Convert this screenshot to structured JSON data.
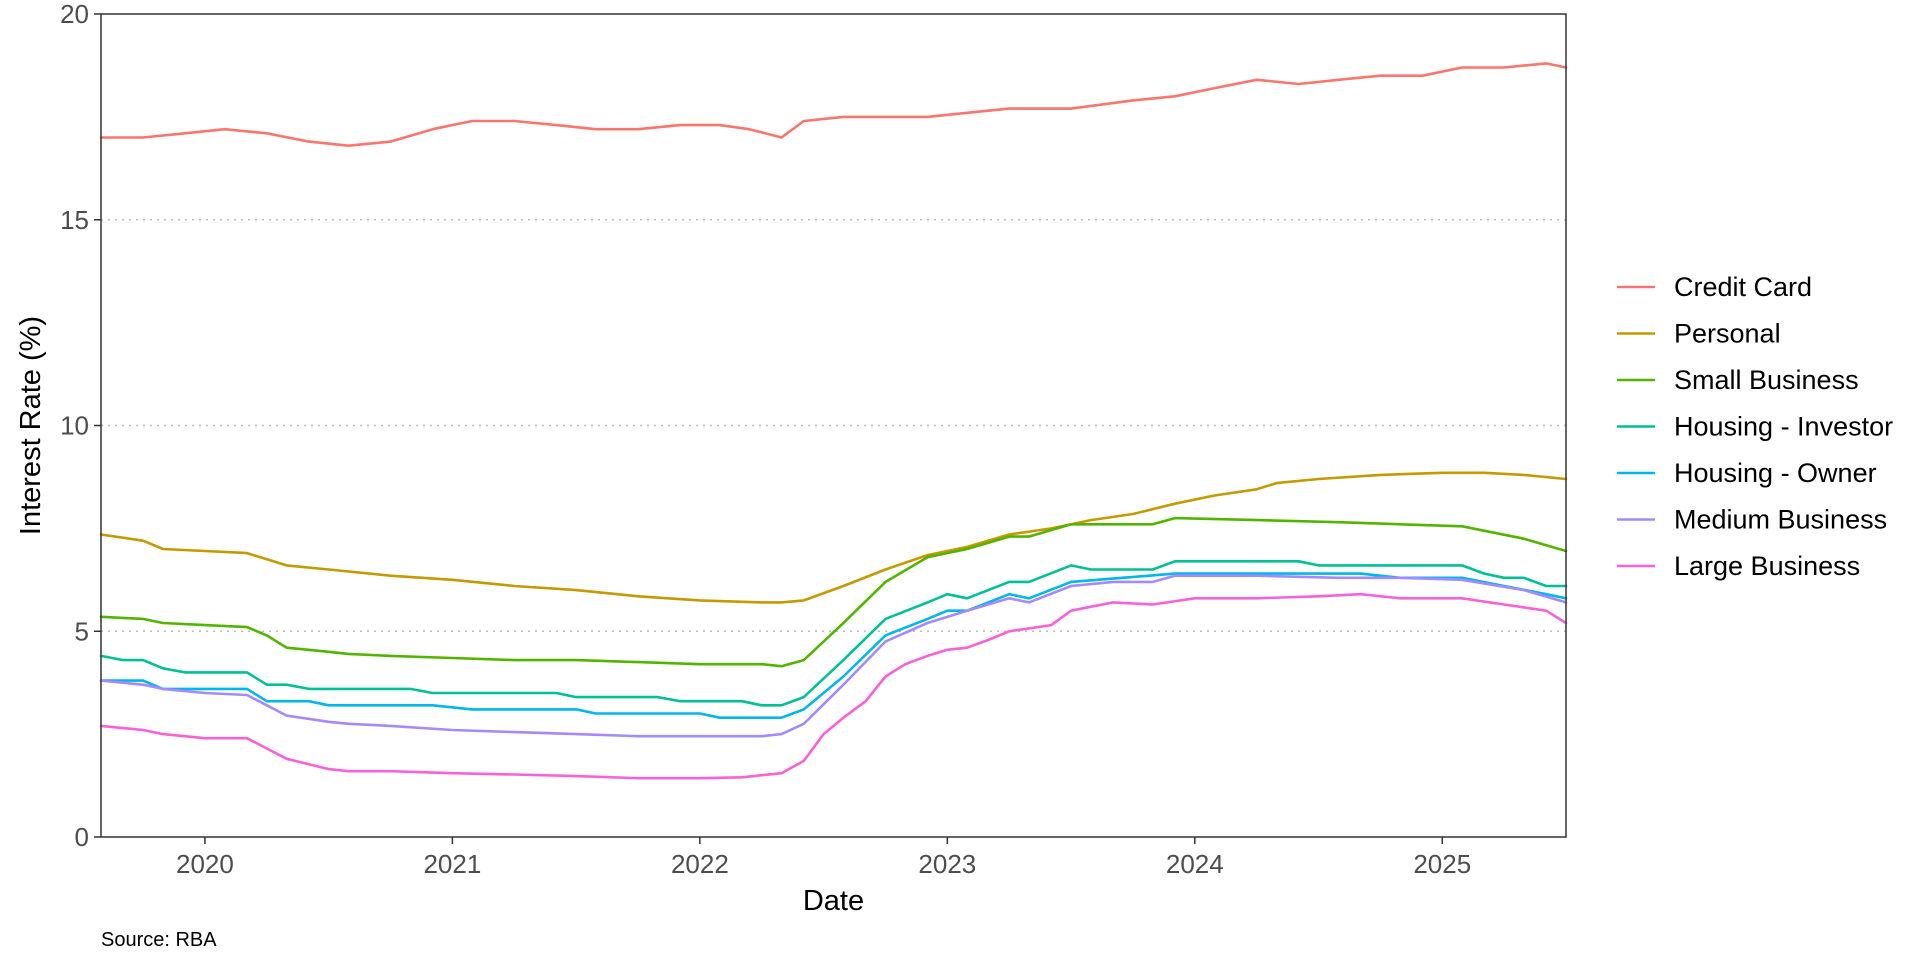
{
  "chart_data": {
    "type": "line",
    "xlabel": "Date",
    "ylabel": "Interest Rate (%)",
    "caption": "Source: RBA",
    "xlim": [
      2019.58,
      2025.5
    ],
    "ylim": [
      0,
      20
    ],
    "x_ticks": [
      2020,
      2021,
      2022,
      2023,
      2024,
      2025
    ],
    "y_ticks": [
      0,
      5,
      10,
      15,
      20
    ],
    "grid": "horizontal major, dotted",
    "legend_position": "right",
    "series": [
      {
        "name": "Credit Card",
        "color": "#F8766D",
        "points": [
          [
            2019.58,
            17.0
          ],
          [
            2019.75,
            17.0
          ],
          [
            2019.92,
            17.1
          ],
          [
            2020.08,
            17.2
          ],
          [
            2020.25,
            17.1
          ],
          [
            2020.42,
            16.9
          ],
          [
            2020.58,
            16.8
          ],
          [
            2020.75,
            16.9
          ],
          [
            2020.92,
            17.2
          ],
          [
            2021.08,
            17.4
          ],
          [
            2021.25,
            17.4
          ],
          [
            2021.42,
            17.3
          ],
          [
            2021.58,
            17.2
          ],
          [
            2021.75,
            17.2
          ],
          [
            2021.92,
            17.3
          ],
          [
            2022.08,
            17.3
          ],
          [
            2022.2,
            17.2
          ],
          [
            2022.33,
            17.0
          ],
          [
            2022.42,
            17.4
          ],
          [
            2022.58,
            17.5
          ],
          [
            2022.75,
            17.5
          ],
          [
            2022.92,
            17.5
          ],
          [
            2023.08,
            17.6
          ],
          [
            2023.25,
            17.7
          ],
          [
            2023.5,
            17.7
          ],
          [
            2023.75,
            17.9
          ],
          [
            2023.92,
            18.0
          ],
          [
            2024.08,
            18.2
          ],
          [
            2024.25,
            18.4
          ],
          [
            2024.42,
            18.3
          ],
          [
            2024.58,
            18.4
          ],
          [
            2024.75,
            18.5
          ],
          [
            2024.92,
            18.5
          ],
          [
            2025.08,
            18.7
          ],
          [
            2025.25,
            18.7
          ],
          [
            2025.42,
            18.8
          ],
          [
            2025.5,
            18.7
          ]
        ]
      },
      {
        "name": "Personal",
        "color": "#C49A00",
        "points": [
          [
            2019.58,
            7.35
          ],
          [
            2019.75,
            7.2
          ],
          [
            2019.83,
            7.0
          ],
          [
            2020.0,
            6.95
          ],
          [
            2020.17,
            6.9
          ],
          [
            2020.33,
            6.6
          ],
          [
            2020.5,
            6.5
          ],
          [
            2020.75,
            6.35
          ],
          [
            2021.0,
            6.25
          ],
          [
            2021.25,
            6.1
          ],
          [
            2021.5,
            6.0
          ],
          [
            2021.75,
            5.85
          ],
          [
            2022.0,
            5.75
          ],
          [
            2022.25,
            5.7
          ],
          [
            2022.33,
            5.7
          ],
          [
            2022.42,
            5.75
          ],
          [
            2022.58,
            6.1
          ],
          [
            2022.75,
            6.5
          ],
          [
            2022.92,
            6.85
          ],
          [
            2023.08,
            7.05
          ],
          [
            2023.25,
            7.35
          ],
          [
            2023.42,
            7.5
          ],
          [
            2023.58,
            7.7
          ],
          [
            2023.75,
            7.85
          ],
          [
            2023.92,
            8.1
          ],
          [
            2024.08,
            8.3
          ],
          [
            2024.25,
            8.45
          ],
          [
            2024.33,
            8.6
          ],
          [
            2024.5,
            8.7
          ],
          [
            2024.75,
            8.8
          ],
          [
            2025.0,
            8.85
          ],
          [
            2025.17,
            8.85
          ],
          [
            2025.33,
            8.8
          ],
          [
            2025.5,
            8.7
          ]
        ]
      },
      {
        "name": "Small Business",
        "color": "#53B400",
        "points": [
          [
            2019.58,
            5.35
          ],
          [
            2019.75,
            5.3
          ],
          [
            2019.83,
            5.2
          ],
          [
            2020.0,
            5.15
          ],
          [
            2020.17,
            5.1
          ],
          [
            2020.25,
            4.9
          ],
          [
            2020.33,
            4.6
          ],
          [
            2020.5,
            4.5
          ],
          [
            2020.58,
            4.45
          ],
          [
            2020.75,
            4.4
          ],
          [
            2021.0,
            4.35
          ],
          [
            2021.25,
            4.3
          ],
          [
            2021.5,
            4.3
          ],
          [
            2021.75,
            4.25
          ],
          [
            2022.0,
            4.2
          ],
          [
            2022.25,
            4.2
          ],
          [
            2022.33,
            4.15
          ],
          [
            2022.42,
            4.3
          ],
          [
            2022.58,
            5.2
          ],
          [
            2022.75,
            6.2
          ],
          [
            2022.92,
            6.8
          ],
          [
            2023.08,
            7.0
          ],
          [
            2023.25,
            7.3
          ],
          [
            2023.33,
            7.3
          ],
          [
            2023.5,
            7.6
          ],
          [
            2023.67,
            7.6
          ],
          [
            2023.83,
            7.6
          ],
          [
            2023.92,
            7.75
          ],
          [
            2024.25,
            7.7
          ],
          [
            2024.58,
            7.65
          ],
          [
            2024.83,
            7.6
          ],
          [
            2025.08,
            7.55
          ],
          [
            2025.33,
            7.25
          ],
          [
            2025.5,
            6.95
          ]
        ]
      },
      {
        "name": "Housing - Investor",
        "color": "#00C094",
        "points": [
          [
            2019.58,
            4.4
          ],
          [
            2019.67,
            4.3
          ],
          [
            2019.75,
            4.3
          ],
          [
            2019.83,
            4.1
          ],
          [
            2019.92,
            4.0
          ],
          [
            2020.17,
            4.0
          ],
          [
            2020.25,
            3.7
          ],
          [
            2020.33,
            3.7
          ],
          [
            2020.42,
            3.6
          ],
          [
            2020.83,
            3.6
          ],
          [
            2020.92,
            3.5
          ],
          [
            2021.42,
            3.5
          ],
          [
            2021.5,
            3.4
          ],
          [
            2021.83,
            3.4
          ],
          [
            2021.92,
            3.3
          ],
          [
            2022.17,
            3.3
          ],
          [
            2022.25,
            3.2
          ],
          [
            2022.33,
            3.2
          ],
          [
            2022.42,
            3.4
          ],
          [
            2022.58,
            4.3
          ],
          [
            2022.75,
            5.3
          ],
          [
            2022.92,
            5.7
          ],
          [
            2023.0,
            5.9
          ],
          [
            2023.08,
            5.8
          ],
          [
            2023.25,
            6.2
          ],
          [
            2023.33,
            6.2
          ],
          [
            2023.5,
            6.6
          ],
          [
            2023.58,
            6.5
          ],
          [
            2023.83,
            6.5
          ],
          [
            2023.92,
            6.7
          ],
          [
            2024.42,
            6.7
          ],
          [
            2024.5,
            6.6
          ],
          [
            2025.08,
            6.6
          ],
          [
            2025.17,
            6.4
          ],
          [
            2025.25,
            6.3
          ],
          [
            2025.33,
            6.3
          ],
          [
            2025.42,
            6.1
          ],
          [
            2025.5,
            6.1
          ]
        ]
      },
      {
        "name": "Housing - Owner",
        "color": "#00B6EB",
        "points": [
          [
            2019.58,
            3.8
          ],
          [
            2019.75,
            3.8
          ],
          [
            2019.83,
            3.6
          ],
          [
            2020.17,
            3.6
          ],
          [
            2020.25,
            3.3
          ],
          [
            2020.42,
            3.3
          ],
          [
            2020.5,
            3.2
          ],
          [
            2020.92,
            3.2
          ],
          [
            2021.08,
            3.1
          ],
          [
            2021.5,
            3.1
          ],
          [
            2021.58,
            3.0
          ],
          [
            2022.0,
            3.0
          ],
          [
            2022.08,
            2.9
          ],
          [
            2022.33,
            2.9
          ],
          [
            2022.42,
            3.1
          ],
          [
            2022.58,
            3.9
          ],
          [
            2022.75,
            4.9
          ],
          [
            2022.92,
            5.3
          ],
          [
            2023.0,
            5.5
          ],
          [
            2023.08,
            5.5
          ],
          [
            2023.25,
            5.9
          ],
          [
            2023.33,
            5.8
          ],
          [
            2023.5,
            6.2
          ],
          [
            2023.92,
            6.4
          ],
          [
            2024.5,
            6.4
          ],
          [
            2024.67,
            6.4
          ],
          [
            2024.83,
            6.3
          ],
          [
            2025.08,
            6.3
          ],
          [
            2025.25,
            6.1
          ],
          [
            2025.42,
            5.9
          ],
          [
            2025.5,
            5.8
          ]
        ]
      },
      {
        "name": "Medium Business",
        "color": "#A58AFF",
        "points": [
          [
            2019.58,
            3.8
          ],
          [
            2019.75,
            3.7
          ],
          [
            2019.83,
            3.6
          ],
          [
            2020.0,
            3.5
          ],
          [
            2020.17,
            3.45
          ],
          [
            2020.25,
            3.2
          ],
          [
            2020.33,
            2.95
          ],
          [
            2020.5,
            2.8
          ],
          [
            2020.58,
            2.75
          ],
          [
            2020.75,
            2.7
          ],
          [
            2021.0,
            2.6
          ],
          [
            2021.25,
            2.55
          ],
          [
            2021.5,
            2.5
          ],
          [
            2021.75,
            2.45
          ],
          [
            2022.0,
            2.45
          ],
          [
            2022.25,
            2.45
          ],
          [
            2022.33,
            2.5
          ],
          [
            2022.42,
            2.75
          ],
          [
            2022.58,
            3.7
          ],
          [
            2022.75,
            4.75
          ],
          [
            2022.92,
            5.2
          ],
          [
            2023.08,
            5.5
          ],
          [
            2023.25,
            5.8
          ],
          [
            2023.33,
            5.7
          ],
          [
            2023.5,
            6.1
          ],
          [
            2023.67,
            6.2
          ],
          [
            2023.83,
            6.2
          ],
          [
            2023.92,
            6.35
          ],
          [
            2024.25,
            6.35
          ],
          [
            2024.58,
            6.3
          ],
          [
            2024.83,
            6.3
          ],
          [
            2025.08,
            6.25
          ],
          [
            2025.33,
            6.0
          ],
          [
            2025.5,
            5.7
          ]
        ]
      },
      {
        "name": "Large Business",
        "color": "#FB61D7",
        "points": [
          [
            2019.58,
            2.7
          ],
          [
            2019.75,
            2.6
          ],
          [
            2019.83,
            2.5
          ],
          [
            2020.0,
            2.4
          ],
          [
            2020.17,
            2.4
          ],
          [
            2020.25,
            2.15
          ],
          [
            2020.33,
            1.9
          ],
          [
            2020.5,
            1.65
          ],
          [
            2020.58,
            1.6
          ],
          [
            2020.75,
            1.6
          ],
          [
            2021.0,
            1.55
          ],
          [
            2021.25,
            1.52
          ],
          [
            2021.5,
            1.48
          ],
          [
            2021.75,
            1.43
          ],
          [
            2022.0,
            1.43
          ],
          [
            2022.17,
            1.45
          ],
          [
            2022.33,
            1.55
          ],
          [
            2022.42,
            1.85
          ],
          [
            2022.5,
            2.5
          ],
          [
            2022.58,
            2.9
          ],
          [
            2022.67,
            3.3
          ],
          [
            2022.75,
            3.9
          ],
          [
            2022.83,
            4.2
          ],
          [
            2022.92,
            4.4
          ],
          [
            2023.0,
            4.55
          ],
          [
            2023.08,
            4.6
          ],
          [
            2023.17,
            4.8
          ],
          [
            2023.25,
            5.0
          ],
          [
            2023.42,
            5.15
          ],
          [
            2023.5,
            5.5
          ],
          [
            2023.67,
            5.7
          ],
          [
            2023.83,
            5.65
          ],
          [
            2024.0,
            5.8
          ],
          [
            2024.25,
            5.8
          ],
          [
            2024.5,
            5.85
          ],
          [
            2024.67,
            5.9
          ],
          [
            2024.83,
            5.8
          ],
          [
            2025.08,
            5.8
          ],
          [
            2025.25,
            5.65
          ],
          [
            2025.42,
            5.5
          ],
          [
            2025.5,
            5.2
          ]
        ]
      }
    ]
  }
}
